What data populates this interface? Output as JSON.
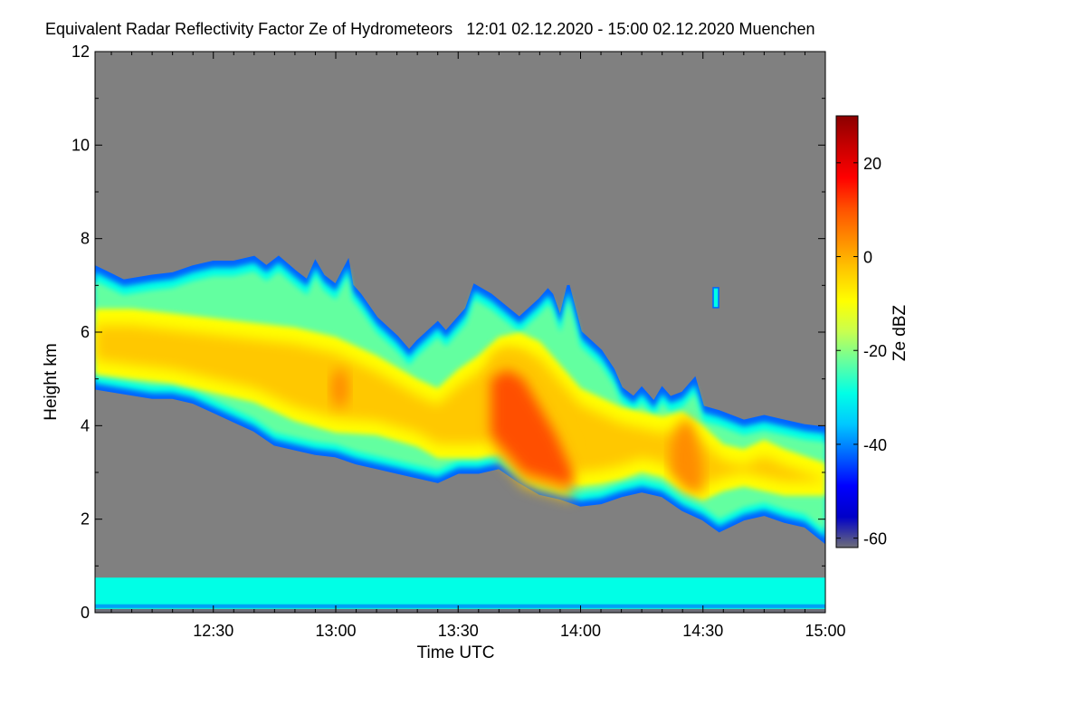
{
  "chart_data": {
    "type": "heatmap",
    "title": "Equivalent Radar Reflectivity Factor Ze of Hydrometeors",
    "subtitle": "12:01 02.12.2020 - 15:00 02.12.2020 Muenchen",
    "xlabel": "Time UTC",
    "ylabel": "Height km",
    "xlim_minutes": [
      721,
      900
    ],
    "ylim": [
      0,
      12
    ],
    "x_ticks": [
      {
        "label": "12:30",
        "minutes": 750
      },
      {
        "label": "13:00",
        "minutes": 780
      },
      {
        "label": "13:30",
        "minutes": 810
      },
      {
        "label": "14:00",
        "minutes": 840
      },
      {
        "label": "14:30",
        "minutes": 870
      },
      {
        "label": "15:00",
        "minutes": 900
      }
    ],
    "y_ticks": [
      0,
      2,
      4,
      6,
      8,
      10,
      12
    ],
    "colorbar": {
      "label": "Ze dBZ",
      "range": [
        -62,
        30
      ],
      "ticks": [
        20,
        0,
        -20,
        -40,
        -60
      ],
      "colors": [
        "#6e6e78",
        "#0000c8",
        "#0000ff",
        "#0064ff",
        "#00c8ff",
        "#00ffe6",
        "#64ffa0",
        "#c8ff50",
        "#ffff00",
        "#ffc800",
        "#ff8c00",
        "#ff5000",
        "#ff0000",
        "#c80000",
        "#8b0000"
      ]
    },
    "background_color": "#808080",
    "series": [
      {
        "name": "upper cloud top height",
        "x": [
          721,
          728,
          735,
          740,
          745,
          750,
          755,
          760,
          763,
          766,
          770,
          773,
          775,
          777,
          780,
          783,
          784,
          786,
          790,
          795,
          798,
          800,
          805,
          807,
          812,
          814,
          818,
          825,
          830,
          832,
          833,
          835,
          837,
          840,
          845,
          848,
          850,
          853,
          855,
          858,
          860,
          862,
          865,
          868,
          869,
          870,
          874,
          880,
          885,
          890,
          895,
          900
        ],
        "values": [
          7.4,
          7.1,
          7.2,
          7.25,
          7.4,
          7.5,
          7.5,
          7.6,
          7.4,
          7.6,
          7.3,
          7.1,
          7.5,
          7.2,
          7.0,
          7.5,
          7.0,
          6.8,
          6.3,
          5.9,
          5.6,
          5.8,
          6.2,
          6.0,
          6.5,
          7.0,
          6.8,
          6.3,
          6.7,
          6.9,
          6.8,
          6.3,
          7.0,
          6.0,
          5.6,
          5.2,
          4.8,
          4.6,
          4.8,
          4.5,
          4.8,
          4.6,
          4.7,
          5.0,
          4.7,
          4.4,
          4.3,
          4.1,
          4.2,
          4.1,
          4.0,
          3.95
        ]
      },
      {
        "name": "upper cloud base height",
        "x": [
          721,
          728,
          735,
          740,
          745,
          750,
          755,
          760,
          765,
          770,
          775,
          780,
          785,
          790,
          795,
          800,
          805,
          810,
          815,
          820,
          825,
          830,
          835,
          840,
          845,
          850,
          855,
          860,
          865,
          870,
          874,
          880,
          885,
          890,
          895,
          900
        ],
        "values": [
          4.8,
          4.7,
          4.6,
          4.6,
          4.5,
          4.3,
          4.1,
          3.9,
          3.6,
          3.5,
          3.4,
          3.35,
          3.2,
          3.1,
          3.0,
          2.9,
          2.8,
          3.0,
          3.0,
          3.1,
          2.8,
          2.55,
          2.45,
          2.3,
          2.35,
          2.5,
          2.6,
          2.5,
          2.2,
          2.0,
          1.75,
          2.0,
          2.1,
          1.95,
          1.85,
          1.5
        ]
      },
      {
        "name": "core -10 dBZ top",
        "x": [
          721,
          730,
          740,
          750,
          760,
          770,
          780,
          790,
          800,
          805,
          810,
          815,
          820,
          825,
          830,
          835,
          840,
          845,
          850,
          855,
          860,
          865,
          870,
          875,
          880,
          885,
          890,
          900
        ],
        "values": [
          6.5,
          6.5,
          6.4,
          6.3,
          6.2,
          6.1,
          5.9,
          5.5,
          5.0,
          4.8,
          5.2,
          5.5,
          5.9,
          6.0,
          5.8,
          5.3,
          4.8,
          4.6,
          4.4,
          4.3,
          4.2,
          4.3,
          4.0,
          3.6,
          3.5,
          3.7,
          3.5,
          3.2
        ]
      },
      {
        "name": "core -10 dBZ base",
        "x": [
          721,
          730,
          740,
          750,
          760,
          770,
          780,
          790,
          800,
          805,
          810,
          815,
          820,
          825,
          830,
          835,
          840,
          845,
          850,
          855,
          860,
          865,
          870,
          875,
          880,
          885,
          890,
          900
        ],
        "values": [
          5.1,
          5.0,
          4.9,
          4.7,
          4.5,
          4.1,
          3.85,
          3.8,
          3.55,
          3.3,
          3.3,
          3.3,
          3.4,
          3.4,
          3.0,
          2.8,
          2.7,
          2.75,
          2.85,
          3.0,
          2.9,
          2.6,
          2.4,
          2.6,
          2.7,
          2.6,
          2.5,
          2.5
        ]
      },
      {
        "name": "core +5 dBZ top",
        "x": [
          818,
          822,
          826,
          830,
          834,
          838
        ],
        "values": [
          5.0,
          5.2,
          5.0,
          4.4,
          3.8,
          3.0
        ]
      },
      {
        "name": "core +5 dBZ base",
        "x": [
          818,
          822,
          826,
          830,
          834,
          838
        ],
        "values": [
          3.8,
          3.4,
          3.0,
          2.9,
          2.8,
          2.7
        ]
      },
      {
        "name": "core +5 dBZ top (14:25)",
        "x": [
          862,
          864,
          866,
          868,
          870
        ],
        "values": [
          3.6,
          4.0,
          4.2,
          3.9,
          3.2
        ]
      },
      {
        "name": "core +5 dBZ base (14:25)",
        "x": [
          862,
          864,
          866,
          868,
          870
        ],
        "values": [
          3.0,
          2.8,
          2.6,
          2.6,
          2.5
        ]
      },
      {
        "name": "surface clutter layer top",
        "x": [
          721,
          900
        ],
        "values": [
          0.75,
          0.75
        ]
      }
    ]
  }
}
